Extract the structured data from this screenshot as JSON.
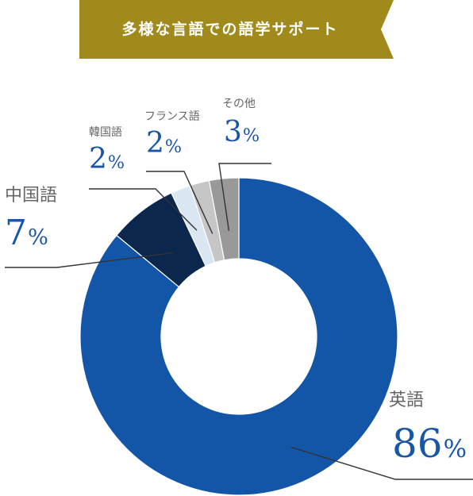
{
  "header": {
    "title": "多様な言語での語学サポート",
    "color": "#a08a1c"
  },
  "chart_data": {
    "type": "pie",
    "style": "donut",
    "title": "",
    "unit": "%",
    "slices": [
      {
        "label": "英語",
        "value": 86,
        "color": "#1356a8"
      },
      {
        "label": "中国語",
        "value": 7,
        "color": "#0b274e"
      },
      {
        "label": "韓国語",
        "value": 2,
        "color": "#dbe6f3"
      },
      {
        "label": "フランス語",
        "value": 2,
        "color": "#c6c6c6"
      },
      {
        "label": "その他",
        "value": 3,
        "color": "#999999"
      }
    ]
  }
}
